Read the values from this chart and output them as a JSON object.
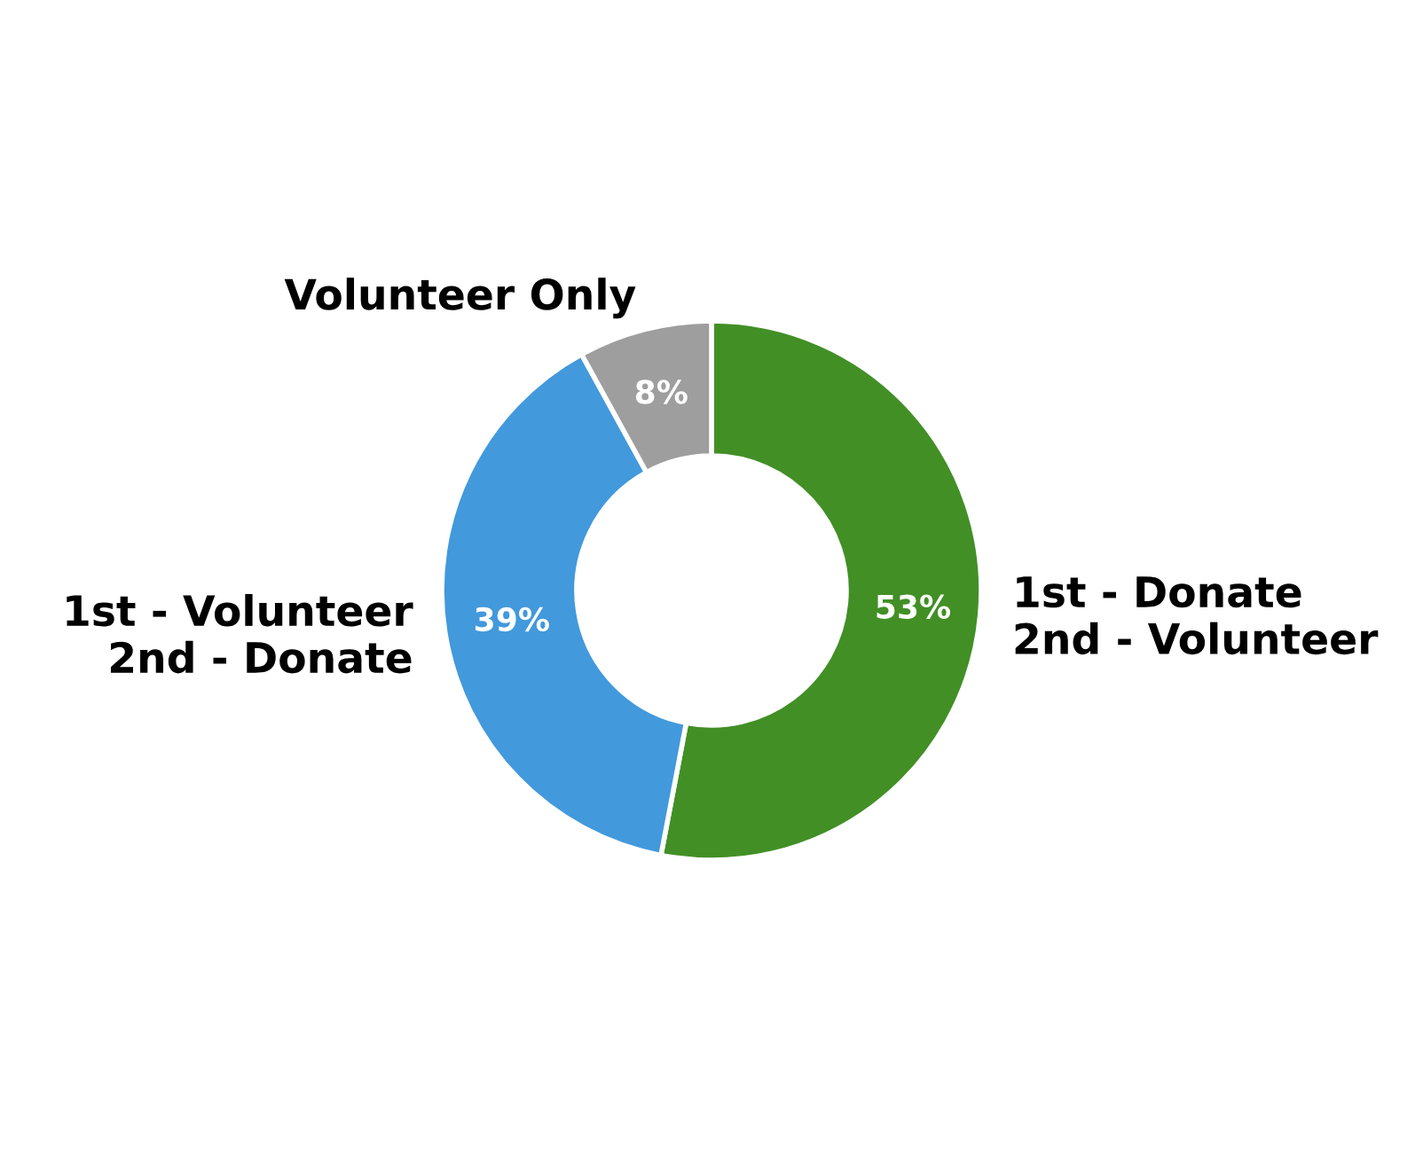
{
  "chart_data": {
    "type": "donut",
    "categories": [
      "1st - Donate\n2nd - Volunteer",
      "1st - Volunteer\n2nd - Donate",
      "Volunteer Only"
    ],
    "values": [
      53,
      39,
      8
    ],
    "colors": [
      "#428f26",
      "#4299dc",
      "#9e9e9e"
    ],
    "value_labels": [
      "53%",
      "39%",
      "8%"
    ]
  }
}
